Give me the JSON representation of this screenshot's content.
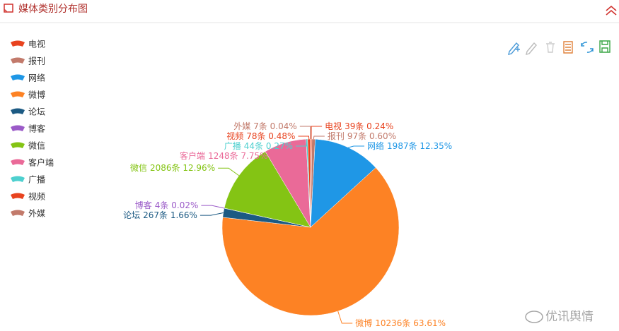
{
  "header": {
    "title": "媒体类别分布图"
  },
  "watermark": "优讯舆情",
  "chart_data": {
    "type": "pie",
    "categories": [
      "电视",
      "报刊",
      "网络",
      "微博",
      "论坛",
      "博客",
      "微信",
      "客户端",
      "广播",
      "视频",
      "外媒"
    ],
    "values": [
      39,
      97,
      1987,
      10236,
      267,
      4,
      2086,
      1248,
      44,
      78,
      7
    ],
    "value_labels": [
      "39条  0.24%",
      "97条  0.60%",
      "1987条  12.35%",
      "10236条  63.61%",
      "267条  1.66%",
      "4条  0.02%",
      "2086条  12.96%",
      "1248条  7.75%",
      "44条  0.27%",
      "78条  0.48%",
      "7条  0.04%"
    ],
    "colors": [
      "#e8431f",
      "#c27a6b",
      "#1f97e6",
      "#fd8224",
      "#1c5a83",
      "#9b5bc8",
      "#84c414",
      "#ea6a98",
      "#4ed0cf",
      "#e8431f",
      "#c27a6b"
    ],
    "legend": "left"
  }
}
